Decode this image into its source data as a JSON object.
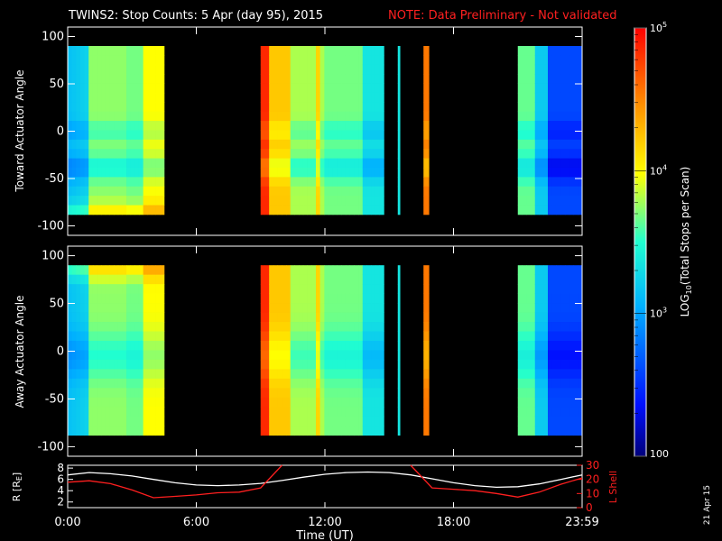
{
  "header": {
    "title": "TWINS2: Stop Counts:  5 Apr (day  95), 2015",
    "note": "NOTE: Data Preliminary - Not validated"
  },
  "side_stamp": "21 Apr 15",
  "colors": {
    "background": "#000000",
    "axes": "#ffffff",
    "note": "#ff2020",
    "lshell": "#ff1f1f",
    "r_line": "#ffffff"
  },
  "chart_data": [
    {
      "type": "heatmap",
      "panel": "toward",
      "ylabel": "Toward Actuator Angle",
      "x_ticks": [
        "0:00",
        "6:00",
        "12:00",
        "18:00",
        "23:59"
      ],
      "y_ticks": [
        "100",
        "50",
        "0",
        "-50",
        "-100"
      ],
      "xlim_hours": [
        0,
        24
      ],
      "ylim": [
        -110,
        110
      ],
      "angle_range": [
        -88,
        90
      ],
      "data_spans_hours": [
        [
          0.0,
          4.5
        ],
        [
          9.0,
          14.75
        ],
        [
          15.4,
          15.5
        ],
        [
          16.6,
          16.85
        ],
        [
          21.0,
          24.0
        ]
      ],
      "colormap": "rainbow (blue low, red high)",
      "colorscale": "log"
    },
    {
      "type": "heatmap",
      "panel": "away",
      "ylabel": "Away Actuator Angle",
      "x_ticks": [
        "0:00",
        "6:00",
        "12:00",
        "18:00",
        "23:59"
      ],
      "y_ticks": [
        "100",
        "50",
        "0",
        "-50",
        "-100"
      ],
      "xlim_hours": [
        0,
        24
      ],
      "ylim": [
        -110,
        110
      ],
      "angle_range": [
        -88,
        90
      ],
      "data_spans_hours": [
        [
          0.0,
          4.5
        ],
        [
          9.0,
          14.75
        ],
        [
          15.4,
          15.5
        ],
        [
          16.6,
          16.85
        ],
        [
          21.0,
          24.0
        ]
      ],
      "colormap": "rainbow (blue low, red high)",
      "colorscale": "log"
    },
    {
      "type": "line",
      "panel": "orbit",
      "xlabel": "Time (UT)",
      "ylabel_left": "R [R",
      "ylabel_left_sub": "E",
      "ylabel_left_close": "]",
      "ylabel_right": "L Shell",
      "x_ticks": [
        "0:00",
        "6:00",
        "12:00",
        "18:00",
        "23:59"
      ],
      "y_left_ticks": [
        "8",
        "6",
        "4",
        "2"
      ],
      "y_left_range": [
        1,
        8.5
      ],
      "y_right_ticks": [
        "30",
        "20",
        "10",
        "0"
      ],
      "y_right_range": [
        0,
        30
      ],
      "series": [
        {
          "axis": "left",
          "x": [
            0,
            1,
            2,
            3,
            4,
            5,
            6,
            7,
            8,
            9,
            10,
            11,
            12,
            13,
            14,
            15,
            16,
            17,
            18,
            19,
            20,
            21,
            22,
            23,
            24
          ],
          "y": [
            6.8,
            7.2,
            7.0,
            6.6,
            6.0,
            5.4,
            5.0,
            4.9,
            5.0,
            5.3,
            5.8,
            6.4,
            6.9,
            7.2,
            7.3,
            7.2,
            6.8,
            6.1,
            5.4,
            4.9,
            4.6,
            4.7,
            5.2,
            6.0,
            6.8
          ]
        },
        {
          "axis": "right",
          "x": [
            0,
            1,
            2,
            3,
            4,
            5,
            6,
            7,
            8,
            9,
            10,
            16,
            17,
            18,
            19,
            20,
            21,
            22,
            23,
            24
          ],
          "y": [
            18.0,
            19.0,
            17.0,
            12.5,
            7.0,
            8.0,
            9.0,
            10.5,
            11.0,
            14.0,
            30.0,
            30.0,
            14.0,
            13.0,
            12.0,
            10.0,
            7.5,
            11.0,
            16.5,
            21.0
          ]
        }
      ]
    }
  ],
  "colorbar": {
    "label_prefix": "LOG",
    "label_sub": "10",
    "label_suffix": "(Total Stops per Scan)",
    "tick_labels": [
      "10",
      "10",
      "10",
      "100"
    ],
    "tick_sup": [
      "5",
      "4",
      "3",
      ""
    ],
    "range": [
      100,
      100000
    ]
  }
}
